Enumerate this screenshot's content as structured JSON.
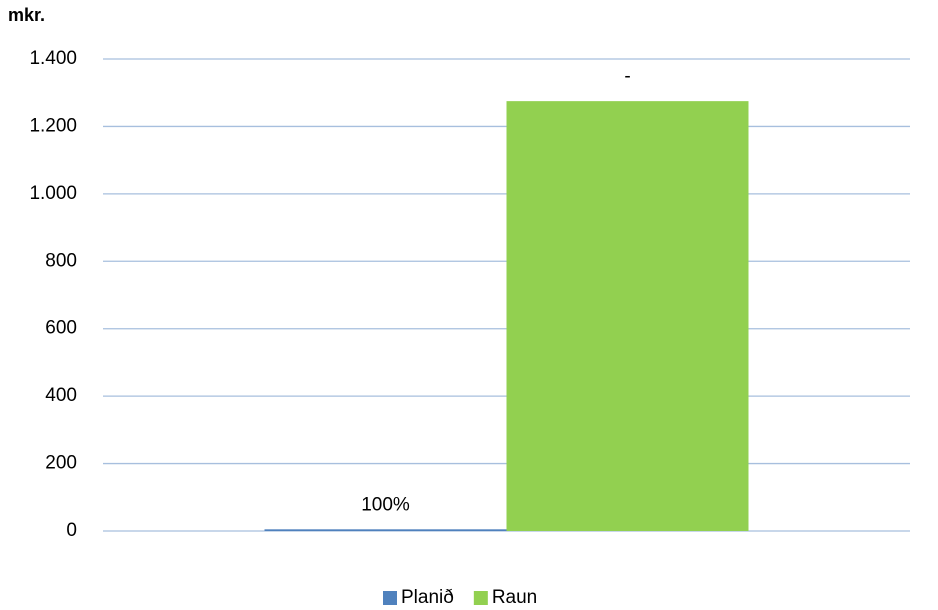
{
  "chart_data": {
    "type": "bar",
    "y_axis_label": "mkr.",
    "categories": [
      null
    ],
    "series": [
      {
        "name": "Planið",
        "color": "#4f81bd",
        "values": [
          5
        ]
      },
      {
        "name": "Raun",
        "color": "#92d050",
        "values": [
          1275
        ]
      }
    ],
    "annotations": [
      "100%",
      "-"
    ],
    "ylim": [
      0,
      1400
    ],
    "yticks": [
      0,
      200,
      400,
      600,
      800,
      {
        "value": 1000,
        "label": "1.000"
      },
      {
        "value": 1200,
        "label": "1.200"
      },
      {
        "value": 1400,
        "label": "1.400"
      }
    ],
    "grid": true,
    "legend": "bottom"
  }
}
